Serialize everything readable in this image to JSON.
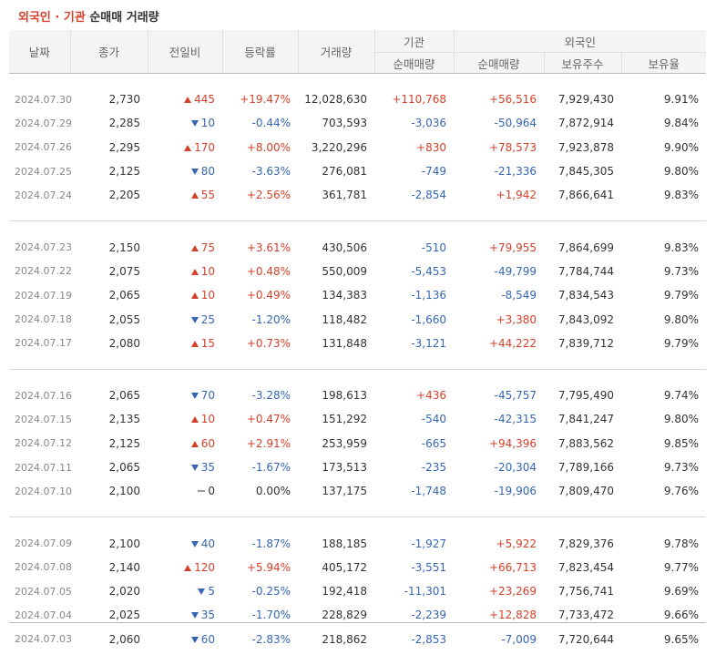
{
  "title": {
    "part1": "외국인 · 기관",
    "part2": "순매매 거래량"
  },
  "headers": {
    "date": "날짜",
    "close": "종가",
    "change": "전일비",
    "rate": "등락률",
    "volume": "거래량",
    "inst": "기관",
    "inst_net": "순매매량",
    "foreign": "외국인",
    "foreign_net": "순매매량",
    "foreign_shares": "보유주수",
    "foreign_ratio": "보유율"
  },
  "rows": [
    {
      "date": "2024.07.30",
      "close": "2,730",
      "dir": "up",
      "change": "445",
      "rate": "+19.47%",
      "volume": "12,028,630",
      "inst": "+110,768",
      "foreign": "+56,516",
      "shares": "7,929,430",
      "ratio": "9.91%"
    },
    {
      "date": "2024.07.29",
      "close": "2,285",
      "dir": "down",
      "change": "10",
      "rate": "-0.44%",
      "volume": "703,593",
      "inst": "-3,036",
      "foreign": "-50,964",
      "shares": "7,872,914",
      "ratio": "9.84%"
    },
    {
      "date": "2024.07.26",
      "close": "2,295",
      "dir": "up",
      "change": "170",
      "rate": "+8.00%",
      "volume": "3,220,296",
      "inst": "+830",
      "foreign": "+78,573",
      "shares": "7,923,878",
      "ratio": "9.90%"
    },
    {
      "date": "2024.07.25",
      "close": "2,125",
      "dir": "down",
      "change": "80",
      "rate": "-3.63%",
      "volume": "276,081",
      "inst": "-749",
      "foreign": "-21,336",
      "shares": "7,845,305",
      "ratio": "9.80%"
    },
    {
      "date": "2024.07.24",
      "close": "2,205",
      "dir": "up",
      "change": "55",
      "rate": "+2.56%",
      "volume": "361,781",
      "inst": "-2,854",
      "foreign": "+1,942",
      "shares": "7,866,641",
      "ratio": "9.83%"
    },
    {
      "date": "2024.07.23",
      "close": "2,150",
      "dir": "up",
      "change": "75",
      "rate": "+3.61%",
      "volume": "430,506",
      "inst": "-510",
      "foreign": "+79,955",
      "shares": "7,864,699",
      "ratio": "9.83%"
    },
    {
      "date": "2024.07.22",
      "close": "2,075",
      "dir": "up",
      "change": "10",
      "rate": "+0.48%",
      "volume": "550,009",
      "inst": "-5,453",
      "foreign": "-49,799",
      "shares": "7,784,744",
      "ratio": "9.73%"
    },
    {
      "date": "2024.07.19",
      "close": "2,065",
      "dir": "up",
      "change": "10",
      "rate": "+0.49%",
      "volume": "134,383",
      "inst": "-1,136",
      "foreign": "-8,549",
      "shares": "7,834,543",
      "ratio": "9.79%"
    },
    {
      "date": "2024.07.18",
      "close": "2,055",
      "dir": "down",
      "change": "25",
      "rate": "-1.20%",
      "volume": "118,482",
      "inst": "-1,660",
      "foreign": "+3,380",
      "shares": "7,843,092",
      "ratio": "9.80%"
    },
    {
      "date": "2024.07.17",
      "close": "2,080",
      "dir": "up",
      "change": "15",
      "rate": "+0.73%",
      "volume": "131,848",
      "inst": "-3,121",
      "foreign": "+44,222",
      "shares": "7,839,712",
      "ratio": "9.79%"
    },
    {
      "date": "2024.07.16",
      "close": "2,065",
      "dir": "down",
      "change": "70",
      "rate": "-3.28%",
      "volume": "198,613",
      "inst": "+436",
      "foreign": "-45,757",
      "shares": "7,795,490",
      "ratio": "9.74%"
    },
    {
      "date": "2024.07.15",
      "close": "2,135",
      "dir": "up",
      "change": "10",
      "rate": "+0.47%",
      "volume": "151,292",
      "inst": "-540",
      "foreign": "-42,315",
      "shares": "7,841,247",
      "ratio": "9.80%"
    },
    {
      "date": "2024.07.12",
      "close": "2,125",
      "dir": "up",
      "change": "60",
      "rate": "+2.91%",
      "volume": "253,959",
      "inst": "-665",
      "foreign": "+94,396",
      "shares": "7,883,562",
      "ratio": "9.85%"
    },
    {
      "date": "2024.07.11",
      "close": "2,065",
      "dir": "down",
      "change": "35",
      "rate": "-1.67%",
      "volume": "173,513",
      "inst": "-235",
      "foreign": "-20,304",
      "shares": "7,789,166",
      "ratio": "9.73%"
    },
    {
      "date": "2024.07.10",
      "close": "2,100",
      "dir": "flat",
      "change": "0",
      "rate": "0.00%",
      "volume": "137,175",
      "inst": "-1,748",
      "foreign": "-19,906",
      "shares": "7,809,470",
      "ratio": "9.76%"
    },
    {
      "date": "2024.07.09",
      "close": "2,100",
      "dir": "down",
      "change": "40",
      "rate": "-1.87%",
      "volume": "188,185",
      "inst": "-1,927",
      "foreign": "+5,922",
      "shares": "7,829,376",
      "ratio": "9.78%"
    },
    {
      "date": "2024.07.08",
      "close": "2,140",
      "dir": "up",
      "change": "120",
      "rate": "+5.94%",
      "volume": "405,172",
      "inst": "-3,551",
      "foreign": "+66,713",
      "shares": "7,823,454",
      "ratio": "9.77%"
    },
    {
      "date": "2024.07.05",
      "close": "2,020",
      "dir": "down",
      "change": "5",
      "rate": "-0.25%",
      "volume": "192,418",
      "inst": "-11,301",
      "foreign": "+23,269",
      "shares": "7,756,741",
      "ratio": "9.69%"
    },
    {
      "date": "2024.07.04",
      "close": "2,025",
      "dir": "down",
      "change": "35",
      "rate": "-1.70%",
      "volume": "228,829",
      "inst": "-2,239",
      "foreign": "+12,828",
      "shares": "7,733,472",
      "ratio": "9.66%"
    },
    {
      "date": "2024.07.03",
      "close": "2,060",
      "dir": "down",
      "change": "60",
      "rate": "-2.83%",
      "volume": "218,862",
      "inst": "-2,853",
      "foreign": "-7,009",
      "shares": "7,720,644",
      "ratio": "9.65%"
    }
  ],
  "colors": {
    "up": "#d5402a",
    "down": "#3666b2",
    "header_bg": "#f4f4f4"
  }
}
